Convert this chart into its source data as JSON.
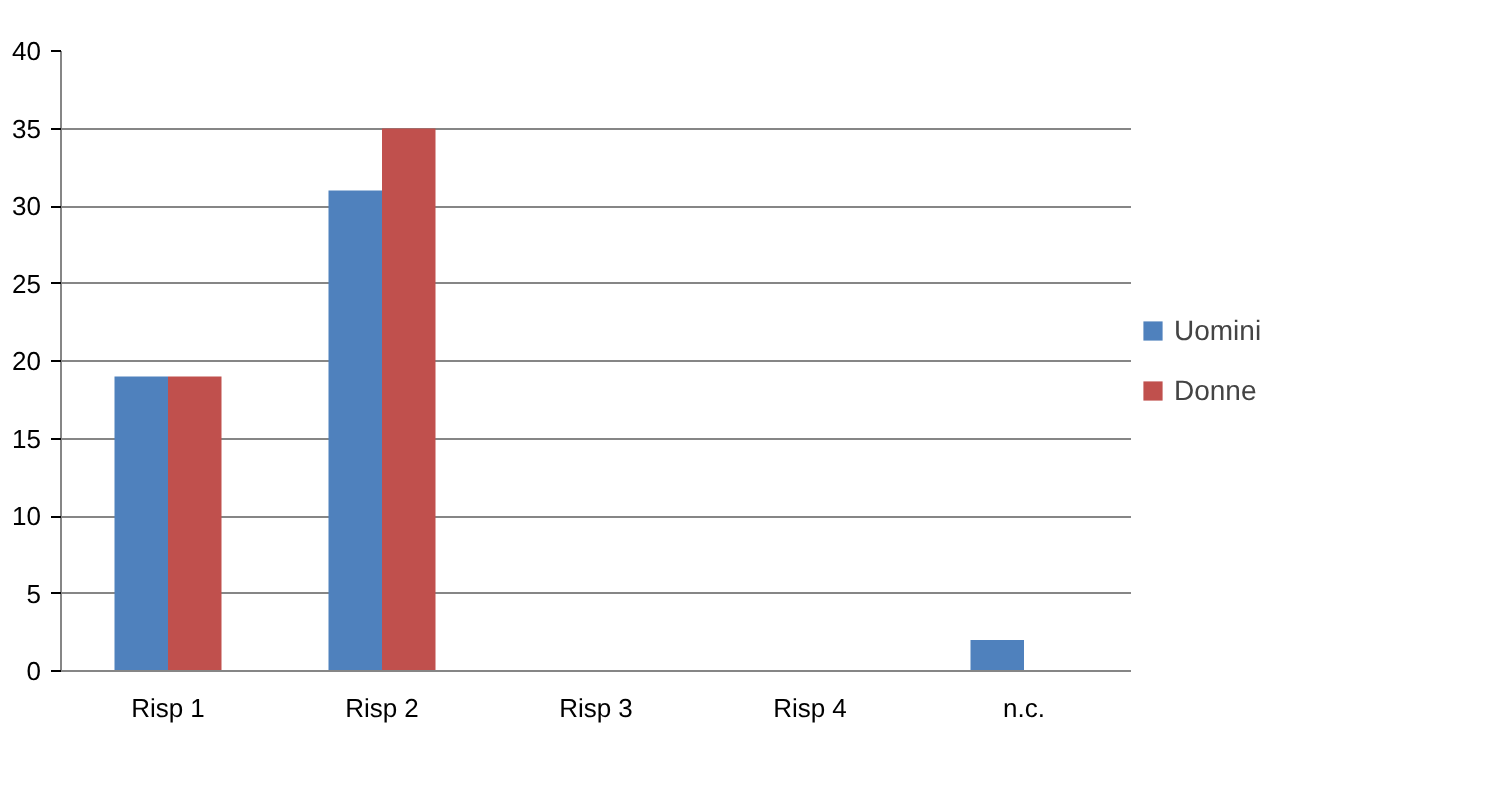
{
  "chart_data": {
    "type": "bar",
    "categories": [
      "Risp 1",
      "Risp 2",
      "Risp 3",
      "Risp 4",
      "n.c."
    ],
    "series": [
      {
        "name": "Uomini",
        "color": "#4f81bd",
        "values": [
          19,
          31,
          0,
          0,
          2
        ]
      },
      {
        "name": "Donne",
        "color": "#c0504d",
        "values": [
          19,
          35,
          0,
          0,
          0
        ]
      }
    ],
    "ylim": [
      0,
      40
    ],
    "yticks": [
      0,
      5,
      10,
      15,
      20,
      25,
      30,
      35,
      40
    ],
    "grid": "y",
    "legend": "right"
  }
}
